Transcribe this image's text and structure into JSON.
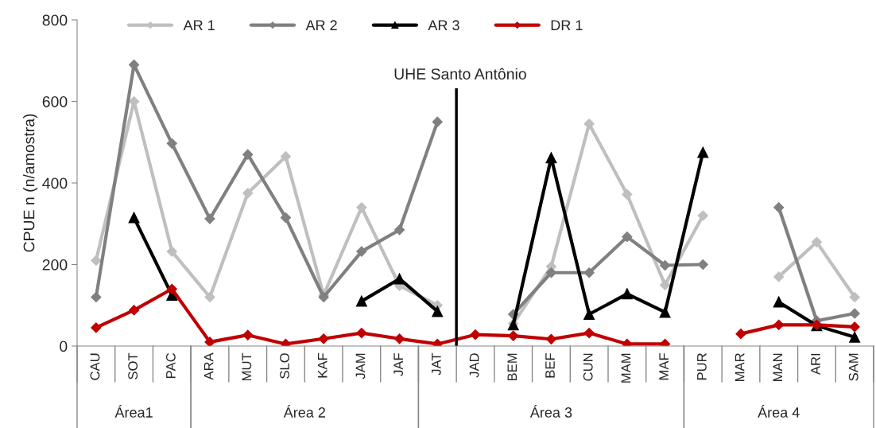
{
  "chart_data": {
    "type": "line",
    "ylabel": "CPUE n (n/amostra)",
    "categories": [
      "CAU",
      "SOT",
      "PAC",
      "ARA",
      "MUT",
      "SLO",
      "KAF",
      "JAM",
      "JAF",
      "JAT",
      "JAD",
      "BEM",
      "BEF",
      "CUN",
      "MAM",
      "MAF",
      "PUR",
      "MAR",
      "MAN",
      "ARI",
      "SAM"
    ],
    "series": [
      {
        "name": "AR 1",
        "color": "#bfbfbf",
        "marker": "diamond",
        "values": [
          210,
          600,
          232,
          120,
          375,
          465,
          125,
          340,
          148,
          100,
          null,
          55,
          195,
          545,
          372,
          150,
          320,
          null,
          170,
          255,
          120
        ]
      },
      {
        "name": "AR 2",
        "color": "#808080",
        "marker": "diamond",
        "values": [
          120,
          690,
          497,
          312,
          470,
          315,
          120,
          232,
          285,
          550,
          null,
          78,
          180,
          180,
          268,
          198,
          200,
          null,
          340,
          62,
          80
        ]
      },
      {
        "name": "AR 3",
        "color": "#000000",
        "marker": "triangle",
        "values": [
          null,
          315,
          125,
          null,
          null,
          null,
          null,
          110,
          165,
          85,
          null,
          52,
          462,
          78,
          128,
          83,
          475,
          null,
          108,
          50,
          22
        ]
      },
      {
        "name": "DR 1",
        "color": "#c00000",
        "marker": "diamond",
        "values": [
          45,
          88,
          140,
          10,
          27,
          5,
          18,
          32,
          18,
          5,
          28,
          25,
          17,
          32,
          5,
          5,
          null,
          30,
          52,
          52,
          47
        ]
      }
    ],
    "ylim": [
      0,
      800
    ],
    "yticks": [
      0,
      200,
      400,
      600,
      800
    ],
    "annotations": [
      "UHE Santo Antônio",
      "Área1",
      "Área 2",
      "Área 3",
      "Área 4"
    ],
    "legend": "top",
    "grid": false,
    "line_style": "solid"
  }
}
